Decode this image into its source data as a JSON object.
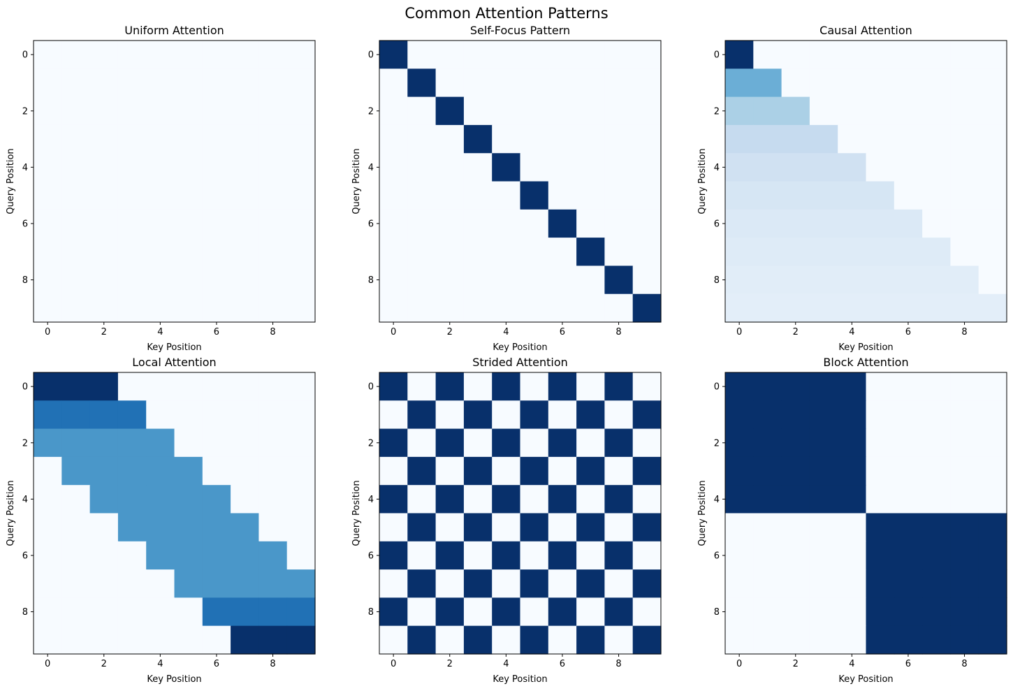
{
  "figure": {
    "title": "Common Attention Patterns"
  },
  "chart_data": [
    {
      "type": "heatmap",
      "colormap": "Blues",
      "vmin": 0,
      "vmax": 1,
      "title": "Uniform Attention",
      "xlabel": "Key Position",
      "ylabel": "Query Position",
      "x_ticks": [
        0,
        2,
        4,
        6,
        8
      ],
      "y_ticks": [
        0,
        2,
        4,
        6,
        8
      ],
      "matrix": [
        [
          0,
          0,
          0,
          0,
          0,
          0,
          0,
          0,
          0,
          0
        ],
        [
          0,
          0,
          0,
          0,
          0,
          0,
          0,
          0,
          0,
          0
        ],
        [
          0,
          0,
          0,
          0,
          0,
          0,
          0,
          0,
          0,
          0
        ],
        [
          0,
          0,
          0,
          0,
          0,
          0,
          0,
          0,
          0,
          0
        ],
        [
          0,
          0,
          0,
          0,
          0,
          0,
          0,
          0,
          0,
          0
        ],
        [
          0,
          0,
          0,
          0,
          0,
          0,
          0,
          0,
          0,
          0
        ],
        [
          0,
          0,
          0,
          0,
          0,
          0,
          0,
          0,
          0,
          0
        ],
        [
          0,
          0,
          0,
          0,
          0,
          0,
          0,
          0,
          0,
          0
        ],
        [
          0,
          0,
          0,
          0,
          0,
          0,
          0,
          0,
          0,
          0
        ],
        [
          0,
          0,
          0,
          0,
          0,
          0,
          0,
          0,
          0,
          0
        ]
      ]
    },
    {
      "type": "heatmap",
      "colormap": "Blues",
      "vmin": 0,
      "vmax": 1,
      "title": "Self-Focus Pattern",
      "xlabel": "Key Position",
      "ylabel": "Query Position",
      "x_ticks": [
        0,
        2,
        4,
        6,
        8
      ],
      "y_ticks": [
        0,
        2,
        4,
        6,
        8
      ],
      "matrix": [
        [
          1,
          0,
          0,
          0,
          0,
          0,
          0,
          0,
          0,
          0
        ],
        [
          0,
          1,
          0,
          0,
          0,
          0,
          0,
          0,
          0,
          0
        ],
        [
          0,
          0,
          1,
          0,
          0,
          0,
          0,
          0,
          0,
          0
        ],
        [
          0,
          0,
          0,
          1,
          0,
          0,
          0,
          0,
          0,
          0
        ],
        [
          0,
          0,
          0,
          0,
          1,
          0,
          0,
          0,
          0,
          0
        ],
        [
          0,
          0,
          0,
          0,
          0,
          1,
          0,
          0,
          0,
          0
        ],
        [
          0,
          0,
          0,
          0,
          0,
          0,
          1,
          0,
          0,
          0
        ],
        [
          0,
          0,
          0,
          0,
          0,
          0,
          0,
          1,
          0,
          0
        ],
        [
          0,
          0,
          0,
          0,
          0,
          0,
          0,
          0,
          1,
          0
        ],
        [
          0,
          0,
          0,
          0,
          0,
          0,
          0,
          0,
          0,
          1
        ]
      ]
    },
    {
      "type": "heatmap",
      "colormap": "Blues",
      "vmin": 0,
      "vmax": 1,
      "title": "Causal Attention",
      "xlabel": "Key Position",
      "ylabel": "Query Position",
      "x_ticks": [
        0,
        2,
        4,
        6,
        8
      ],
      "y_ticks": [
        0,
        2,
        4,
        6,
        8
      ],
      "matrix": [
        [
          1,
          0,
          0,
          0,
          0,
          0,
          0,
          0,
          0,
          0
        ],
        [
          0.5,
          0.5,
          0,
          0,
          0,
          0,
          0,
          0,
          0,
          0
        ],
        [
          0.333,
          0.333,
          0.333,
          0,
          0,
          0,
          0,
          0,
          0,
          0
        ],
        [
          0.25,
          0.25,
          0.25,
          0.25,
          0,
          0,
          0,
          0,
          0,
          0
        ],
        [
          0.2,
          0.2,
          0.2,
          0.2,
          0.2,
          0,
          0,
          0,
          0,
          0
        ],
        [
          0.167,
          0.167,
          0.167,
          0.167,
          0.167,
          0.167,
          0,
          0,
          0,
          0
        ],
        [
          0.143,
          0.143,
          0.143,
          0.143,
          0.143,
          0.143,
          0.143,
          0,
          0,
          0
        ],
        [
          0.125,
          0.125,
          0.125,
          0.125,
          0.125,
          0.125,
          0.125,
          0.125,
          0,
          0
        ],
        [
          0.111,
          0.111,
          0.111,
          0.111,
          0.111,
          0.111,
          0.111,
          0.111,
          0.111,
          0
        ],
        [
          0.1,
          0.1,
          0.1,
          0.1,
          0.1,
          0.1,
          0.1,
          0.1,
          0.1,
          0.1
        ]
      ]
    },
    {
      "type": "heatmap",
      "colormap": "Blues",
      "vmin": 0,
      "vmax": 0.333,
      "title": "Local Attention",
      "xlabel": "Key Position",
      "ylabel": "Query Position",
      "x_ticks": [
        0,
        2,
        4,
        6,
        8
      ],
      "y_ticks": [
        0,
        2,
        4,
        6,
        8
      ],
      "matrix": [
        [
          0.333,
          0.333,
          0.333,
          0,
          0,
          0,
          0,
          0,
          0,
          0
        ],
        [
          0.25,
          0.25,
          0.25,
          0.25,
          0,
          0,
          0,
          0,
          0,
          0
        ],
        [
          0.2,
          0.2,
          0.2,
          0.2,
          0.2,
          0,
          0,
          0,
          0,
          0
        ],
        [
          0,
          0.2,
          0.2,
          0.2,
          0.2,
          0.2,
          0,
          0,
          0,
          0
        ],
        [
          0,
          0,
          0.2,
          0.2,
          0.2,
          0.2,
          0.2,
          0,
          0,
          0
        ],
        [
          0,
          0,
          0,
          0.2,
          0.2,
          0.2,
          0.2,
          0.2,
          0,
          0
        ],
        [
          0,
          0,
          0,
          0,
          0.2,
          0.2,
          0.2,
          0.2,
          0.2,
          0
        ],
        [
          0,
          0,
          0,
          0,
          0,
          0.2,
          0.2,
          0.2,
          0.2,
          0.2
        ],
        [
          0,
          0,
          0,
          0,
          0,
          0,
          0.25,
          0.25,
          0.25,
          0.25
        ],
        [
          0,
          0,
          0,
          0,
          0,
          0,
          0,
          0.333,
          0.333,
          0.333
        ]
      ]
    },
    {
      "type": "heatmap",
      "colormap": "Blues",
      "vmin": 0,
      "vmax": 1,
      "title": "Strided Attention",
      "xlabel": "Key Position",
      "ylabel": "Query Position",
      "x_ticks": [
        0,
        2,
        4,
        6,
        8
      ],
      "y_ticks": [
        0,
        2,
        4,
        6,
        8
      ],
      "matrix": [
        [
          1,
          0,
          1,
          0,
          1,
          0,
          1,
          0,
          1,
          0
        ],
        [
          0,
          1,
          0,
          1,
          0,
          1,
          0,
          1,
          0,
          1
        ],
        [
          1,
          0,
          1,
          0,
          1,
          0,
          1,
          0,
          1,
          0
        ],
        [
          0,
          1,
          0,
          1,
          0,
          1,
          0,
          1,
          0,
          1
        ],
        [
          1,
          0,
          1,
          0,
          1,
          0,
          1,
          0,
          1,
          0
        ],
        [
          0,
          1,
          0,
          1,
          0,
          1,
          0,
          1,
          0,
          1
        ],
        [
          1,
          0,
          1,
          0,
          1,
          0,
          1,
          0,
          1,
          0
        ],
        [
          0,
          1,
          0,
          1,
          0,
          1,
          0,
          1,
          0,
          1
        ],
        [
          1,
          0,
          1,
          0,
          1,
          0,
          1,
          0,
          1,
          0
        ],
        [
          0,
          1,
          0,
          1,
          0,
          1,
          0,
          1,
          0,
          1
        ]
      ]
    },
    {
      "type": "heatmap",
      "colormap": "Blues",
      "vmin": 0,
      "vmax": 1,
      "title": "Block Attention",
      "xlabel": "Key Position",
      "ylabel": "Query Position",
      "x_ticks": [
        0,
        2,
        4,
        6,
        8
      ],
      "y_ticks": [
        0,
        2,
        4,
        6,
        8
      ],
      "matrix": [
        [
          1,
          1,
          1,
          1,
          1,
          0,
          0,
          0,
          0,
          0
        ],
        [
          1,
          1,
          1,
          1,
          1,
          0,
          0,
          0,
          0,
          0
        ],
        [
          1,
          1,
          1,
          1,
          1,
          0,
          0,
          0,
          0,
          0
        ],
        [
          1,
          1,
          1,
          1,
          1,
          0,
          0,
          0,
          0,
          0
        ],
        [
          1,
          1,
          1,
          1,
          1,
          0,
          0,
          0,
          0,
          0
        ],
        [
          0,
          0,
          0,
          0,
          0,
          1,
          1,
          1,
          1,
          1
        ],
        [
          0,
          0,
          0,
          0,
          0,
          1,
          1,
          1,
          1,
          1
        ],
        [
          0,
          0,
          0,
          0,
          0,
          1,
          1,
          1,
          1,
          1
        ],
        [
          0,
          0,
          0,
          0,
          0,
          1,
          1,
          1,
          1,
          1
        ],
        [
          0,
          0,
          0,
          0,
          0,
          1,
          1,
          1,
          1,
          1
        ]
      ]
    }
  ]
}
